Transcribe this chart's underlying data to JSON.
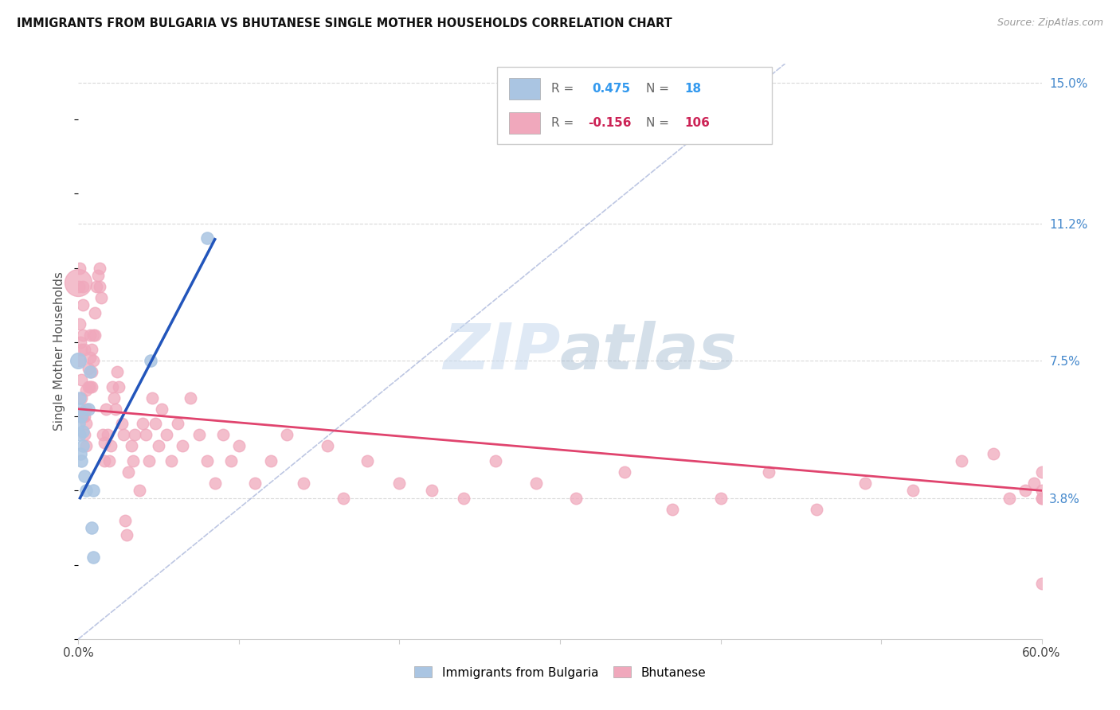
{
  "title": "IMMIGRANTS FROM BULGARIA VS BHUTANESE SINGLE MOTHER HOUSEHOLDS CORRELATION CHART",
  "source": "Source: ZipAtlas.com",
  "ylabel": "Single Mother Households",
  "xlim": [
    0.0,
    0.6
  ],
  "ylim": [
    0.0,
    0.155
  ],
  "yticks": [
    0.038,
    0.075,
    0.112,
    0.15
  ],
  "ytick_labels": [
    "3.8%",
    "7.5%",
    "11.2%",
    "15.0%"
  ],
  "R_bulgaria": 0.475,
  "N_bulgaria": 18,
  "R_bhutanese": -0.156,
  "N_bhutanese": 106,
  "legend_labels": [
    "Immigrants from Bulgaria",
    "Bhutanese"
  ],
  "blue_color": "#aac5e2",
  "blue_line_color": "#2255bb",
  "pink_color": "#f0a8bc",
  "pink_line_color": "#e0446e",
  "dot_size_bulgaria": 120,
  "dot_size_bhutanese": 110,
  "watermark": "ZIPatlas",
  "grid_color": "#d0d0d0",
  "bulgaria_x": [
    0.0005,
    0.0008,
    0.001,
    0.001,
    0.0015,
    0.002,
    0.002,
    0.003,
    0.003,
    0.004,
    0.005,
    0.006,
    0.007,
    0.008,
    0.009,
    0.009,
    0.045,
    0.08
  ],
  "bulgaria_y": [
    0.058,
    0.062,
    0.055,
    0.065,
    0.05,
    0.048,
    0.06,
    0.052,
    0.056,
    0.044,
    0.04,
    0.062,
    0.072,
    0.03,
    0.022,
    0.04,
    0.075,
    0.108
  ],
  "bhutanese_x": [
    0.0002,
    0.0005,
    0.001,
    0.001,
    0.001,
    0.0015,
    0.002,
    0.002,
    0.002,
    0.003,
    0.003,
    0.003,
    0.003,
    0.004,
    0.004,
    0.004,
    0.005,
    0.005,
    0.005,
    0.005,
    0.006,
    0.006,
    0.007,
    0.007,
    0.007,
    0.008,
    0.008,
    0.008,
    0.009,
    0.009,
    0.01,
    0.01,
    0.011,
    0.012,
    0.013,
    0.013,
    0.014,
    0.015,
    0.016,
    0.016,
    0.017,
    0.018,
    0.019,
    0.02,
    0.021,
    0.022,
    0.023,
    0.024,
    0.025,
    0.027,
    0.028,
    0.029,
    0.03,
    0.031,
    0.033,
    0.034,
    0.035,
    0.038,
    0.04,
    0.042,
    0.044,
    0.046,
    0.048,
    0.05,
    0.052,
    0.055,
    0.058,
    0.062,
    0.065,
    0.07,
    0.075,
    0.08,
    0.085,
    0.09,
    0.095,
    0.1,
    0.11,
    0.12,
    0.13,
    0.14,
    0.155,
    0.165,
    0.18,
    0.2,
    0.22,
    0.24,
    0.26,
    0.285,
    0.31,
    0.34,
    0.37,
    0.4,
    0.43,
    0.46,
    0.49,
    0.52,
    0.55,
    0.57,
    0.58,
    0.59,
    0.595,
    0.6,
    0.6,
    0.6,
    0.6,
    0.6
  ],
  "bhutanese_y": [
    0.06,
    0.095,
    0.075,
    0.1,
    0.085,
    0.08,
    0.078,
    0.07,
    0.065,
    0.095,
    0.082,
    0.09,
    0.06,
    0.06,
    0.055,
    0.078,
    0.062,
    0.058,
    0.052,
    0.067,
    0.073,
    0.068,
    0.082,
    0.076,
    0.068,
    0.078,
    0.072,
    0.068,
    0.082,
    0.075,
    0.088,
    0.082,
    0.095,
    0.098,
    0.1,
    0.095,
    0.092,
    0.055,
    0.053,
    0.048,
    0.062,
    0.055,
    0.048,
    0.052,
    0.068,
    0.065,
    0.062,
    0.072,
    0.068,
    0.058,
    0.055,
    0.032,
    0.028,
    0.045,
    0.052,
    0.048,
    0.055,
    0.04,
    0.058,
    0.055,
    0.048,
    0.065,
    0.058,
    0.052,
    0.062,
    0.055,
    0.048,
    0.058,
    0.052,
    0.065,
    0.055,
    0.048,
    0.042,
    0.055,
    0.048,
    0.052,
    0.042,
    0.048,
    0.055,
    0.042,
    0.052,
    0.038,
    0.048,
    0.042,
    0.04,
    0.038,
    0.048,
    0.042,
    0.038,
    0.045,
    0.035,
    0.038,
    0.045,
    0.035,
    0.042,
    0.04,
    0.048,
    0.05,
    0.038,
    0.04,
    0.042,
    0.038,
    0.045,
    0.04,
    0.038,
    0.015
  ],
  "large_pink_x": [
    0.0
  ],
  "large_pink_y": [
    0.096
  ],
  "large_pink_size": 600,
  "large_blue_x": [
    0.0
  ],
  "large_blue_y": [
    0.075
  ],
  "large_blue_size": 200
}
